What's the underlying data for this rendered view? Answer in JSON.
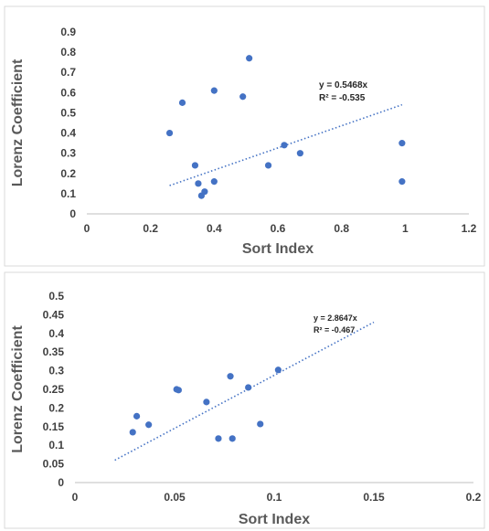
{
  "colors": {
    "point": "#4472C4",
    "trend": "#4472C4",
    "panel_border": "#D9D9D9",
    "text": "#404040"
  },
  "chart_data": [
    {
      "type": "scatter",
      "xlabel": "Sort Index",
      "ylabel": "Lorenz Coefficient",
      "xlim": [
        0,
        1.2
      ],
      "ylim": [
        0,
        0.9
      ],
      "xticks": [
        "0",
        "0.2",
        "0.4",
        "0.6",
        "0.8",
        "1",
        "1.2"
      ],
      "yticks": [
        "0",
        "0.1",
        "0.2",
        "0.3",
        "0.4",
        "0.5",
        "0.6",
        "0.7",
        "0.8",
        "0.9"
      ],
      "grid": false,
      "points": [
        {
          "x": 0.26,
          "y": 0.4
        },
        {
          "x": 0.3,
          "y": 0.55
        },
        {
          "x": 0.34,
          "y": 0.24
        },
        {
          "x": 0.35,
          "y": 0.15
        },
        {
          "x": 0.36,
          "y": 0.09
        },
        {
          "x": 0.37,
          "y": 0.11
        },
        {
          "x": 0.4,
          "y": 0.61
        },
        {
          "x": 0.4,
          "y": 0.16
        },
        {
          "x": 0.49,
          "y": 0.58
        },
        {
          "x": 0.51,
          "y": 0.77
        },
        {
          "x": 0.57,
          "y": 0.24
        },
        {
          "x": 0.62,
          "y": 0.34
        },
        {
          "x": 0.67,
          "y": 0.3
        },
        {
          "x": 0.99,
          "y": 0.35
        },
        {
          "x": 0.99,
          "y": 0.16
        }
      ],
      "trendline": {
        "style": "dotted",
        "from": [
          0.26,
          0.14
        ],
        "to": [
          0.99,
          0.54
        ],
        "equation": "y = 0.5468x",
        "r2": "R² = -0.535"
      }
    },
    {
      "type": "scatter",
      "xlabel": "Sort Index",
      "ylabel": "Lorenz Coefficient",
      "xlim": [
        0,
        0.2
      ],
      "ylim": [
        0,
        0.5
      ],
      "xticks": [
        "0",
        "0.05",
        "0.1",
        "0.15",
        "0.2"
      ],
      "yticks": [
        "0",
        "0.05",
        "0.1",
        "0.15",
        "0.2",
        "0.25",
        "0.3",
        "0.35",
        "0.4",
        "0.45",
        "0.5"
      ],
      "grid": false,
      "points": [
        {
          "x": 0.029,
          "y": 0.135
        },
        {
          "x": 0.031,
          "y": 0.178
        },
        {
          "x": 0.037,
          "y": 0.155
        },
        {
          "x": 0.051,
          "y": 0.25
        },
        {
          "x": 0.052,
          "y": 0.248
        },
        {
          "x": 0.066,
          "y": 0.216
        },
        {
          "x": 0.072,
          "y": 0.118
        },
        {
          "x": 0.078,
          "y": 0.285
        },
        {
          "x": 0.079,
          "y": 0.118
        },
        {
          "x": 0.087,
          "y": 0.255
        },
        {
          "x": 0.093,
          "y": 0.157
        },
        {
          "x": 0.102,
          "y": 0.302
        }
      ],
      "trendline": {
        "style": "dotted",
        "from": [
          0.02,
          0.06
        ],
        "to": [
          0.15,
          0.43
        ],
        "equation": "y = 2.8647x",
        "r2": "R² = -0.467"
      }
    }
  ]
}
